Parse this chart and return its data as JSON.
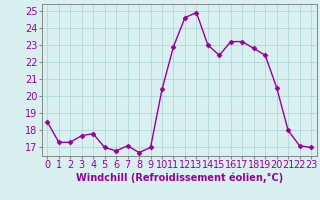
{
  "x": [
    0,
    1,
    2,
    3,
    4,
    5,
    6,
    7,
    8,
    9,
    10,
    11,
    12,
    13,
    14,
    15,
    16,
    17,
    18,
    19,
    20,
    21,
    22,
    23
  ],
  "y": [
    18.5,
    17.3,
    17.3,
    17.7,
    17.8,
    17.0,
    16.8,
    17.1,
    16.7,
    17.0,
    20.4,
    22.9,
    24.6,
    24.9,
    23.0,
    22.4,
    23.2,
    23.2,
    22.8,
    22.4,
    20.5,
    18.0,
    17.1,
    17.0
  ],
  "line_color": "#990099",
  "marker": "D",
  "marker_size": 2.5,
  "line_width": 1.0,
  "bg_color": "#d8f0f0",
  "grid_color": "#b0d8d8",
  "xlabel": "Windchill (Refroidissement éolien,°C)",
  "ylim": [
    16.5,
    25.4
  ],
  "xlim": [
    -0.5,
    23.5
  ],
  "yticks": [
    17,
    18,
    19,
    20,
    21,
    22,
    23,
    24,
    25
  ],
  "xticks": [
    0,
    1,
    2,
    3,
    4,
    5,
    6,
    7,
    8,
    9,
    10,
    11,
    12,
    13,
    14,
    15,
    16,
    17,
    18,
    19,
    20,
    21,
    22,
    23
  ],
  "xlabel_fontsize": 7,
  "tick_fontsize": 7,
  "spine_color": "#888888"
}
